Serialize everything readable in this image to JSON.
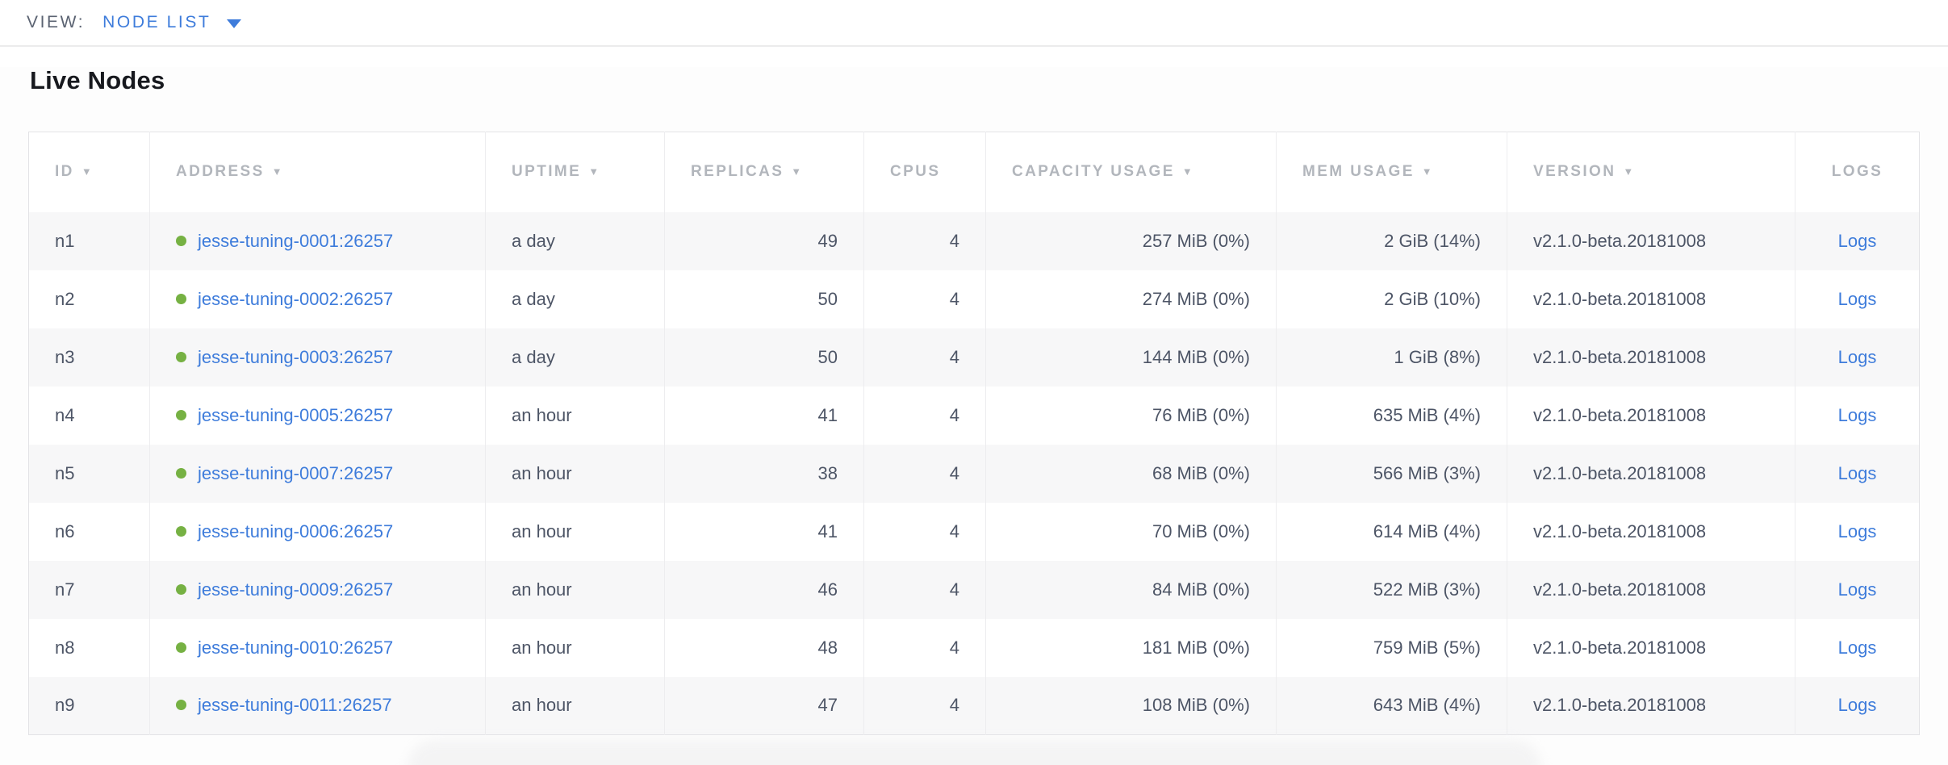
{
  "view_bar": {
    "label": "VIEW:",
    "selected": "NODE LIST",
    "caret_icon": "triangle-down"
  },
  "page": {
    "title": "Live Nodes"
  },
  "table": {
    "sort_indicator": "▼",
    "columns": [
      {
        "key": "id",
        "label": "ID",
        "align": "left",
        "sortable": true,
        "sorted": true
      },
      {
        "key": "address",
        "label": "ADDRESS",
        "align": "left",
        "sortable": true,
        "sorted": true
      },
      {
        "key": "uptime",
        "label": "UPTIME",
        "align": "left",
        "sortable": true,
        "sorted": true
      },
      {
        "key": "replicas",
        "label": "REPLICAS",
        "align": "right",
        "sortable": true,
        "sorted": true
      },
      {
        "key": "cpus",
        "label": "CPUS",
        "align": "right",
        "sortable": false,
        "sorted": false
      },
      {
        "key": "capacity",
        "label": "CAPACITY USAGE",
        "align": "right",
        "sortable": true,
        "sorted": true
      },
      {
        "key": "mem",
        "label": "MEM USAGE",
        "align": "right",
        "sortable": true,
        "sorted": true
      },
      {
        "key": "version",
        "label": "VERSION",
        "align": "left",
        "sortable": true,
        "sorted": true
      },
      {
        "key": "logs",
        "label": "LOGS",
        "align": "center",
        "sortable": false,
        "sorted": false,
        "header_align": "center"
      }
    ],
    "rows": [
      {
        "id": "n1",
        "status": "live",
        "address": "jesse-tuning-0001:26257",
        "uptime": "a day",
        "replicas": "49",
        "cpus": "4",
        "capacity": "257 MiB (0%)",
        "mem": "2 GiB (14%)",
        "version": "v2.1.0-beta.20181008",
        "logs": "Logs"
      },
      {
        "id": "n2",
        "status": "live",
        "address": "jesse-tuning-0002:26257",
        "uptime": "a day",
        "replicas": "50",
        "cpus": "4",
        "capacity": "274 MiB (0%)",
        "mem": "2 GiB (10%)",
        "version": "v2.1.0-beta.20181008",
        "logs": "Logs"
      },
      {
        "id": "n3",
        "status": "live",
        "address": "jesse-tuning-0003:26257",
        "uptime": "a day",
        "replicas": "50",
        "cpus": "4",
        "capacity": "144 MiB (0%)",
        "mem": "1 GiB (8%)",
        "version": "v2.1.0-beta.20181008",
        "logs": "Logs"
      },
      {
        "id": "n4",
        "status": "live",
        "address": "jesse-tuning-0005:26257",
        "uptime": "an hour",
        "replicas": "41",
        "cpus": "4",
        "capacity": "76 MiB (0%)",
        "mem": "635 MiB (4%)",
        "version": "v2.1.0-beta.20181008",
        "logs": "Logs"
      },
      {
        "id": "n5",
        "status": "live",
        "address": "jesse-tuning-0007:26257",
        "uptime": "an hour",
        "replicas": "38",
        "cpus": "4",
        "capacity": "68 MiB (0%)",
        "mem": "566 MiB (3%)",
        "version": "v2.1.0-beta.20181008",
        "logs": "Logs"
      },
      {
        "id": "n6",
        "status": "live",
        "address": "jesse-tuning-0006:26257",
        "uptime": "an hour",
        "replicas": "41",
        "cpus": "4",
        "capacity": "70 MiB (0%)",
        "mem": "614 MiB (4%)",
        "version": "v2.1.0-beta.20181008",
        "logs": "Logs"
      },
      {
        "id": "n7",
        "status": "live",
        "address": "jesse-tuning-0009:26257",
        "uptime": "an hour",
        "replicas": "46",
        "cpus": "4",
        "capacity": "84 MiB (0%)",
        "mem": "522 MiB (3%)",
        "version": "v2.1.0-beta.20181008",
        "logs": "Logs"
      },
      {
        "id": "n8",
        "status": "live",
        "address": "jesse-tuning-0010:26257",
        "uptime": "an hour",
        "replicas": "48",
        "cpus": "4",
        "capacity": "181 MiB (0%)",
        "mem": "759 MiB (5%)",
        "version": "v2.1.0-beta.20181008",
        "logs": "Logs"
      },
      {
        "id": "n9",
        "status": "live",
        "address": "jesse-tuning-0011:26257",
        "uptime": "an hour",
        "replicas": "47",
        "cpus": "4",
        "capacity": "108 MiB (0%)",
        "mem": "643 MiB (4%)",
        "version": "v2.1.0-beta.20181008",
        "logs": "Logs"
      }
    ]
  },
  "colors": {
    "link_blue": "#3e7cdb",
    "node_live_green": "#76b143",
    "header_text_gray": "#b2b6bc",
    "body_text": "#4d5566",
    "row_stripe": "#f7f7f8",
    "border": "#ededef"
  }
}
